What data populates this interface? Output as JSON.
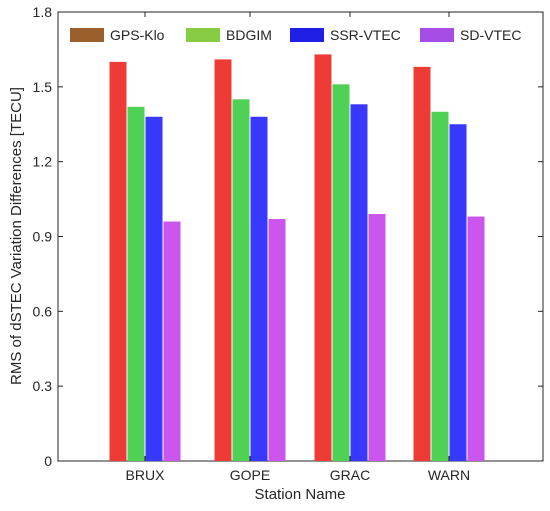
{
  "chart_data": {
    "type": "bar",
    "title": "",
    "xlabel": "Station Name",
    "ylabel": "RMS of dSTEC Variation Differences [TECU]",
    "categories": [
      "BRUX",
      "GOPE",
      "GRAC",
      "WARN"
    ],
    "ylim": [
      0,
      1.8
    ],
    "yticks": [
      0,
      0.3,
      0.6,
      0.9,
      1.2,
      1.5,
      1.8
    ],
    "ytick_labels": [
      "0",
      "0.3",
      "0.6",
      "0.9",
      "1.2",
      "1.5",
      "1.8"
    ],
    "grid": false,
    "legend_position": "top",
    "series": [
      {
        "name": "GPS-Klo",
        "values": [
          1.6,
          1.61,
          1.63,
          1.58
        ],
        "legend_color": "#9b5f2e",
        "bar_color": "#ef3b36"
      },
      {
        "name": "BDGIM",
        "values": [
          1.42,
          1.45,
          1.51,
          1.4
        ],
        "legend_color": "#88cc44",
        "bar_color": "#4fd155"
      },
      {
        "name": "SSR-VTEC",
        "values": [
          1.38,
          1.38,
          1.43,
          1.35
        ],
        "legend_color": "#1f1fe6",
        "bar_color": "#3838ff"
      },
      {
        "name": "SD-VTEC",
        "values": [
          0.96,
          0.97,
          0.99,
          0.98
        ],
        "legend_color": "#a64de6",
        "bar_color": "#cc55ee"
      }
    ]
  }
}
